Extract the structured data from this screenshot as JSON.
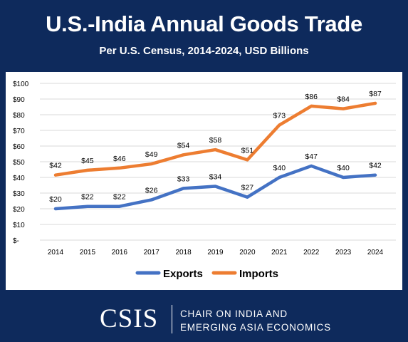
{
  "header": {
    "title": "U.S.-India Annual Goods Trade",
    "subtitle": "Per U.S. Census, 2014-2024, USD Billions"
  },
  "footer": {
    "logo_text": "CSIS",
    "program_line1": "CHAIR ON INDIA AND",
    "program_line2": "EMERGING ASIA ECONOMICS"
  },
  "colors": {
    "background": "#0e2a5c",
    "exports": "#4472c4",
    "imports": "#ed7d31",
    "grid": "#d9d9d9"
  },
  "chart_data": {
    "type": "line",
    "title": "U.S.-India Annual Goods Trade",
    "subtitle": "Per U.S. Census, 2014-2024, USD Billions",
    "x": [
      "2014",
      "2015",
      "2016",
      "2017",
      "2018",
      "2019",
      "2020",
      "2021",
      "2022",
      "2023",
      "2024"
    ],
    "y_ticks": [
      "$-",
      "$10",
      "$20",
      "$30",
      "$40",
      "$50",
      "$60",
      "$70",
      "$80",
      "$90",
      "$100"
    ],
    "ylim": [
      0,
      100
    ],
    "grid": true,
    "legend_position": "bottom",
    "series": [
      {
        "name": "Exports",
        "color": "#4472c4",
        "values": [
          20,
          21.5,
          21.5,
          25.7,
          33,
          34.3,
          27.4,
          40,
          47.3,
          40,
          41.5
        ],
        "labels": [
          "$20",
          "$22",
          "$22",
          "$26",
          "$33",
          "$34",
          "$27",
          "$40",
          "$47",
          "$40",
          "$42"
        ]
      },
      {
        "name": "Imports",
        "color": "#ed7d31",
        "values": [
          41.5,
          44.6,
          46,
          48.6,
          54.4,
          57.7,
          51.2,
          73.4,
          85.5,
          83.8,
          87.3
        ],
        "labels": [
          "$42",
          "$45",
          "$46",
          "$49",
          "$54",
          "$58",
          "$51",
          "$73",
          "$86",
          "$84",
          "$87"
        ]
      }
    ]
  }
}
